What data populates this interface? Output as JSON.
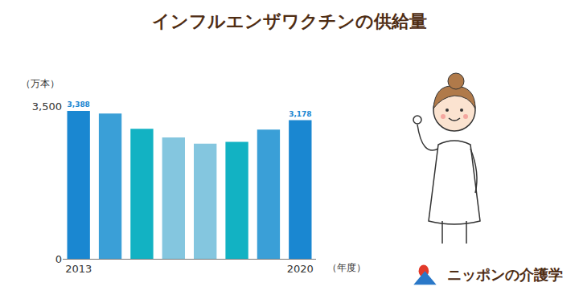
{
  "chart_data": {
    "type": "bar",
    "title": "インフルエンザワクチンの供給量",
    "y_label": "（万本）",
    "x_label": "（年度）",
    "logo": "ニッポンの介護学",
    "categories": [
      "2013",
      null,
      null,
      null,
      null,
      null,
      null,
      "2020"
    ],
    "values": [
      3388,
      3330,
      2980,
      2780,
      2640,
      2680,
      2960,
      3178
    ],
    "data_labels": true,
    "value_labels": [
      "3,388",
      null,
      null,
      null,
      null,
      null,
      null,
      "3,178"
    ],
    "colors": [
      "#1a87d1",
      "#3a9fd7",
      "#12b2c3",
      "#84c6df",
      "#84c6df",
      "#12b2c3",
      "#3a9fd7",
      "#1a87d1"
    ],
    "ylim": [
      0,
      3500
    ],
    "yticks": [
      0,
      {
        "value": 3500,
        "label": "3,500"
      }
    ],
    "grid": false
  }
}
